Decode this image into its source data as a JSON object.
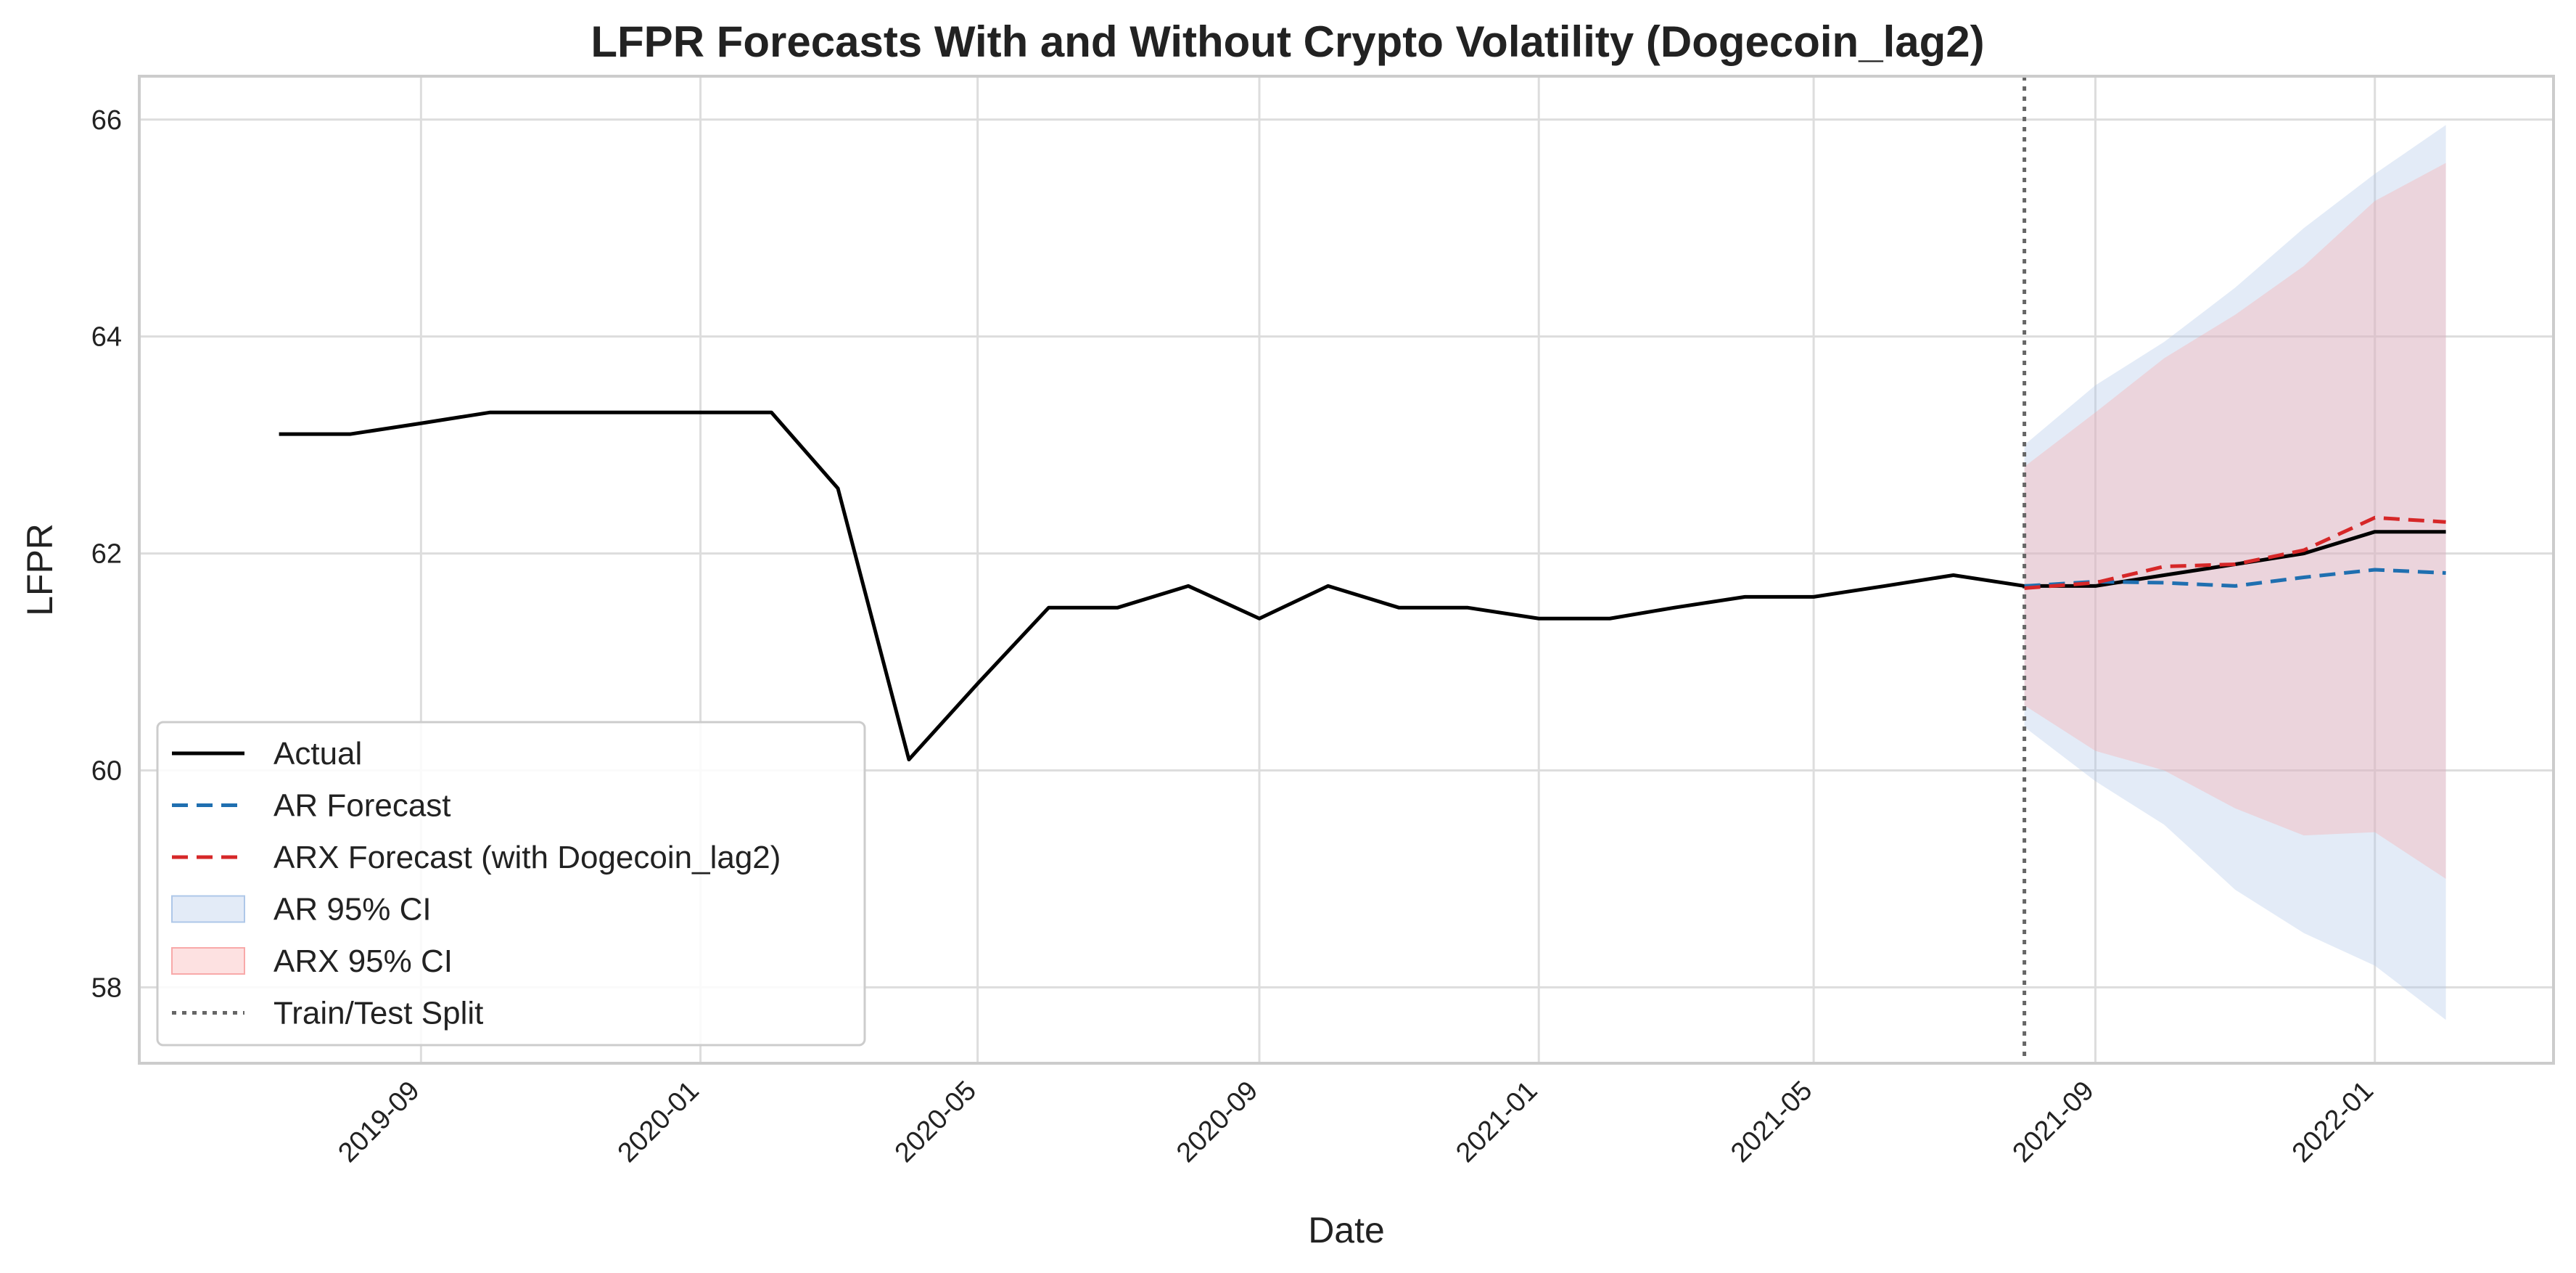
{
  "chart_data": {
    "type": "line",
    "title": "LFPR Forecasts With and Without Crypto Volatility (Dogecoin_lag2)",
    "xlabel": "Date",
    "ylabel": "LFPR",
    "x_tick_labels": [
      "2019-09",
      "2020-01",
      "2020-05",
      "2020-09",
      "2021-01",
      "2021-05",
      "2021-09",
      "2022-01"
    ],
    "y_ticks": [
      58,
      60,
      62,
      64,
      66
    ],
    "xlim": [
      "2019-05-01",
      "2022-03-20"
    ],
    "ylim": [
      57.3,
      66.4
    ],
    "grid": true,
    "legend_position": "lower-left",
    "split_date": "2021-08-01",
    "series": [
      {
        "name": "Actual",
        "style": "solid",
        "color": "#000000",
        "points": [
          [
            "2019-07-01",
            63.1
          ],
          [
            "2019-08-01",
            63.1
          ],
          [
            "2019-09-01",
            63.2
          ],
          [
            "2019-10-01",
            63.3
          ],
          [
            "2019-11-01",
            63.3
          ],
          [
            "2019-12-01",
            63.3
          ],
          [
            "2020-01-01",
            63.3
          ],
          [
            "2020-02-01",
            63.3
          ],
          [
            "2020-03-01",
            62.6
          ],
          [
            "2020-04-01",
            60.1
          ],
          [
            "2020-05-01",
            60.8
          ],
          [
            "2020-06-01",
            61.5
          ],
          [
            "2020-07-01",
            61.5
          ],
          [
            "2020-08-01",
            61.7
          ],
          [
            "2020-09-01",
            61.4
          ],
          [
            "2020-10-01",
            61.7
          ],
          [
            "2020-11-01",
            61.5
          ],
          [
            "2020-12-01",
            61.5
          ],
          [
            "2021-01-01",
            61.4
          ],
          [
            "2021-02-01",
            61.4
          ],
          [
            "2021-03-01",
            61.5
          ],
          [
            "2021-04-01",
            61.6
          ],
          [
            "2021-05-01",
            61.6
          ],
          [
            "2021-06-01",
            61.7
          ],
          [
            "2021-07-01",
            61.8
          ],
          [
            "2021-08-01",
            61.7
          ],
          [
            "2021-09-01",
            61.7
          ],
          [
            "2021-10-01",
            61.8
          ],
          [
            "2021-11-01",
            61.9
          ],
          [
            "2021-12-01",
            62.0
          ],
          [
            "2022-01-01",
            62.2
          ],
          [
            "2022-02-01",
            62.2
          ]
        ]
      },
      {
        "name": "AR Forecast",
        "style": "dashed",
        "color": "#1f6fb0",
        "points": [
          [
            "2021-08-01",
            61.7
          ],
          [
            "2021-09-01",
            61.74
          ],
          [
            "2021-10-01",
            61.73
          ],
          [
            "2021-11-01",
            61.7
          ],
          [
            "2021-12-01",
            61.78
          ],
          [
            "2022-01-01",
            61.85
          ],
          [
            "2022-02-01",
            61.82
          ]
        ]
      },
      {
        "name": "ARX Forecast (with Dogecoin_lag2)",
        "style": "dashed",
        "color": "#d62728",
        "points": [
          [
            "2021-08-01",
            61.68
          ],
          [
            "2021-09-01",
            61.73
          ],
          [
            "2021-10-01",
            61.88
          ],
          [
            "2021-11-01",
            61.9
          ],
          [
            "2021-12-01",
            62.03
          ],
          [
            "2022-01-01",
            62.33
          ],
          [
            "2022-02-01",
            62.29
          ]
        ]
      }
    ],
    "bands": [
      {
        "name": "AR 95% CI",
        "color": "#aec7e8",
        "x": [
          "2021-08-01",
          "2021-09-01",
          "2021-10-01",
          "2021-11-01",
          "2021-12-01",
          "2022-01-01",
          "2022-02-01"
        ],
        "lower": [
          60.4,
          59.9,
          59.5,
          58.9,
          58.5,
          58.2,
          57.7
        ],
        "upper": [
          63.0,
          63.55,
          63.95,
          64.45,
          65.0,
          65.5,
          65.95
        ]
      },
      {
        "name": "ARX 95% CI",
        "color": "#f8a9a9",
        "x": [
          "2021-08-01",
          "2021-09-01",
          "2021-10-01",
          "2021-11-01",
          "2021-12-01",
          "2022-01-01",
          "2022-02-01"
        ],
        "lower": [
          60.6,
          60.18,
          60.0,
          59.65,
          59.4,
          59.43,
          59.0
        ],
        "upper": [
          62.8,
          63.3,
          63.8,
          64.2,
          64.65,
          65.25,
          65.6
        ]
      }
    ],
    "split_label": "Train/Test Split",
    "legend": [
      "Actual",
      "AR Forecast",
      "ARX Forecast (with Dogecoin_lag2)",
      "AR 95% CI",
      "ARX 95% CI",
      "Train/Test Split"
    ]
  }
}
